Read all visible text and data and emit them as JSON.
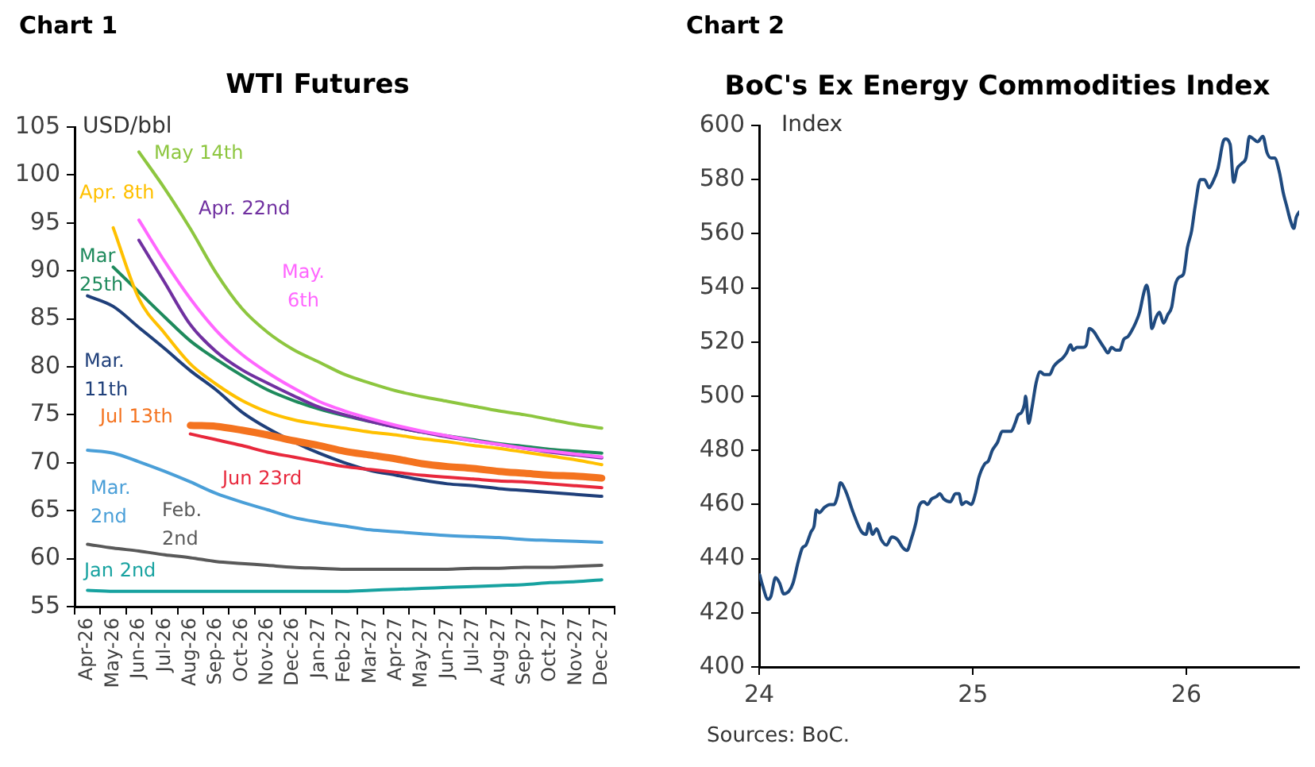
{
  "chart_data": [
    {
      "type": "line",
      "title": "WTI Futures",
      "ylabel": "USD/bbl",
      "annotations": [
        "Chart 1"
      ],
      "categories": [
        "Apr-26",
        "May-26",
        "Jun-26",
        "Jul-26",
        "Aug-26",
        "Sep-26",
        "Oct-26",
        "Nov-26",
        "Dec-26",
        "Jan-27",
        "Feb-27",
        "Mar-27",
        "Apr-27",
        "May-27",
        "Jun-27",
        "Jul-27",
        "Aug-27",
        "Sep-27",
        "Oct-27",
        "Nov-27",
        "Dec-27"
      ],
      "series": [
        {
          "name": "Jan 2nd",
          "color": "#17a2a0",
          "values": [
            56.7,
            56.6,
            56.6,
            56.6,
            56.6,
            56.6,
            56.6,
            56.6,
            56.6,
            56.6,
            56.6,
            56.7,
            56.8,
            56.9,
            57.0,
            57.1,
            57.2,
            57.3,
            57.5,
            57.6,
            57.8
          ]
        },
        {
          "name": "Feb. 2nd",
          "color": "#595959",
          "values": [
            61.5,
            61.1,
            60.8,
            60.4,
            60.1,
            59.7,
            59.5,
            59.3,
            59.1,
            59.0,
            58.9,
            58.9,
            58.9,
            58.9,
            58.9,
            59.0,
            59.0,
            59.1,
            59.1,
            59.2,
            59.3
          ]
        },
        {
          "name": "Mar. 2nd",
          "color": "#4a9fd8",
          "values": [
            71.3,
            71.0,
            70.1,
            69.1,
            68.0,
            66.8,
            65.9,
            65.1,
            64.3,
            63.8,
            63.4,
            63.0,
            62.8,
            62.6,
            62.4,
            62.3,
            62.2,
            62.0,
            61.9,
            61.8,
            61.7
          ]
        },
        {
          "name": "Mar. 11th",
          "color": "#1f3f7a",
          "values": [
            87.4,
            86.3,
            84.1,
            81.9,
            79.6,
            77.6,
            75.3,
            73.6,
            72.2,
            71.0,
            70.0,
            69.2,
            68.7,
            68.2,
            67.8,
            67.6,
            67.3,
            67.1,
            66.9,
            66.7,
            66.5
          ]
        },
        {
          "name": "Mar 25th",
          "color": "#1e8a5c",
          "values": [
            null,
            90.4,
            87.8,
            85.2,
            82.7,
            80.8,
            79.1,
            77.6,
            76.5,
            75.6,
            74.9,
            74.3,
            73.7,
            73.2,
            72.8,
            72.4,
            72.0,
            71.7,
            71.4,
            71.2,
            71.0
          ]
        },
        {
          "name": "Apr. 8th",
          "color": "#ffc000",
          "values": [
            null,
            94.5,
            87.1,
            83.5,
            80.3,
            78.2,
            76.5,
            75.3,
            74.5,
            74.0,
            73.6,
            73.2,
            72.9,
            72.5,
            72.2,
            71.8,
            71.5,
            71.1,
            70.7,
            70.3,
            69.8
          ]
        },
        {
          "name": "Apr. 22nd",
          "color": "#7030a0",
          "values": [
            null,
            null,
            93.2,
            88.8,
            84.4,
            81.6,
            79.7,
            78.3,
            77.0,
            75.8,
            75.0,
            74.3,
            73.7,
            73.2,
            72.7,
            72.3,
            71.9,
            71.5,
            71.1,
            70.8,
            70.5
          ]
        },
        {
          "name": "May. 6th",
          "color": "#ff66ff",
          "values": [
            null,
            null,
            95.3,
            91.0,
            87.1,
            83.8,
            81.3,
            79.4,
            77.8,
            76.4,
            75.4,
            74.6,
            73.9,
            73.3,
            72.8,
            72.3,
            71.9,
            71.5,
            71.2,
            70.9,
            70.6
          ]
        },
        {
          "name": "May 14th",
          "color": "#8dc63f",
          "values": [
            null,
            null,
            102.4,
            98.6,
            94.4,
            89.8,
            86.1,
            83.6,
            81.8,
            80.5,
            79.2,
            78.3,
            77.5,
            76.9,
            76.4,
            75.9,
            75.4,
            75.0,
            74.5,
            74.0,
            73.6
          ]
        },
        {
          "name": "Jun 23rd",
          "color": "#e8283c",
          "values": [
            null,
            null,
            null,
            null,
            73.0,
            72.4,
            71.8,
            71.1,
            70.6,
            70.1,
            69.6,
            69.3,
            69.0,
            68.7,
            68.5,
            68.3,
            68.1,
            68.0,
            67.8,
            67.6,
            67.4
          ]
        },
        {
          "name": "Jul 13th",
          "color": "#f4731f",
          "values": [
            null,
            null,
            null,
            null,
            73.9,
            73.8,
            73.4,
            72.9,
            72.3,
            71.8,
            71.2,
            70.8,
            70.4,
            69.9,
            69.6,
            69.4,
            69.1,
            68.9,
            68.7,
            68.6,
            68.4
          ]
        }
      ],
      "ylim": [
        55,
        105
      ],
      "yticks": [
        55,
        60,
        65,
        70,
        75,
        80,
        85,
        90,
        95,
        100,
        105
      ],
      "grid": false,
      "legend": false,
      "marker": "none"
    },
    {
      "type": "line",
      "title": "BoC's Ex Energy Commodities Index",
      "ylabel": "Index",
      "annotations": [
        "Chart 2",
        "Sources: BoC."
      ],
      "x": [
        "2024-01-02",
        "2024-01-07",
        "2024-01-16",
        "2024-01-21",
        "2024-01-29",
        "2024-02-05",
        "2024-02-12",
        "2024-02-21",
        "2024-02-28",
        "2024-03-08",
        "2024-03-15",
        "2024-03-21",
        "2024-03-30",
        "2024-04-04",
        "2024-04-08",
        "2024-04-13",
        "2024-04-22",
        "2024-05-01",
        "2024-05-08",
        "2024-05-14",
        "2024-05-19",
        "2024-05-28",
        "2024-06-10",
        "2024-06-24",
        "2024-07-02",
        "2024-07-07",
        "2024-07-13",
        "2024-07-20",
        "2024-07-28",
        "2024-08-06",
        "2024-08-15",
        "2024-08-25",
        "2024-09-03",
        "2024-09-10",
        "2024-09-17",
        "2024-09-26",
        "2024-09-30",
        "2024-10-09",
        "2024-10-15",
        "2024-10-22",
        "2024-10-31",
        "2024-11-05",
        "2024-11-12",
        "2024-11-23",
        "2024-12-02",
        "2024-12-08",
        "2024-12-13",
        "2024-12-20",
        "2024-12-29",
        "2025-01-05",
        "2025-01-11",
        "2025-01-21",
        "2025-01-27",
        "2025-02-03",
        "2025-02-12",
        "2025-02-20",
        "2025-03-01",
        "2025-03-07",
        "2025-03-14",
        "2025-03-19",
        "2025-03-25",
        "2025-03-30",
        "2025-04-01",
        "2025-04-06",
        "2025-04-12",
        "2025-04-19",
        "2025-04-26",
        "2025-05-03",
        "2025-05-12",
        "2025-05-19",
        "2025-05-28",
        "2025-06-03",
        "2025-06-10",
        "2025-06-17",
        "2025-06-21",
        "2025-06-28",
        "2025-07-08",
        "2025-07-14",
        "2025-07-19",
        "2025-07-26",
        "2025-08-04",
        "2025-08-13",
        "2025-08-20",
        "2025-08-26",
        "2025-09-03",
        "2025-09-09",
        "2025-09-16",
        "2025-09-23",
        "2025-09-29",
        "2025-10-06",
        "2025-10-13",
        "2025-10-20",
        "2025-10-25",
        "2025-10-29",
        "2025-11-03",
        "2025-11-10",
        "2025-11-16",
        "2025-11-23",
        "2025-11-30",
        "2025-12-07",
        "2025-12-13",
        "2025-12-20",
        "2025-12-27",
        "2026-01-03",
        "2026-01-10",
        "2026-01-16",
        "2026-01-25",
        "2026-02-01",
        "2026-02-09",
        "2026-02-15",
        "2026-02-24",
        "2026-03-05",
        "2026-03-09",
        "2026-03-17",
        "2026-03-23",
        "2026-03-29",
        "2026-04-06",
        "2026-04-13",
        "2026-04-19",
        "2026-04-26",
        "2026-05-03",
        "2026-05-12",
        "2026-05-19",
        "2026-05-26",
        "2026-06-01",
        "2026-06-09",
        "2026-06-16",
        "2026-06-22",
        "2026-06-28",
        "2026-07-04",
        "2026-07-08",
        "2026-07-13"
      ],
      "values": [
        434,
        430,
        425,
        426,
        433,
        431,
        427,
        428,
        431,
        439,
        444,
        445,
        450,
        452,
        458,
        457,
        459,
        460,
        460,
        463,
        468,
        465,
        457,
        450,
        449,
        453,
        449,
        451,
        447,
        445,
        448,
        447,
        444,
        443,
        447,
        454,
        459,
        461,
        460,
        462,
        463,
        464,
        462,
        461,
        464,
        464,
        460,
        461,
        460,
        464,
        470,
        475,
        476,
        480,
        483,
        487,
        487,
        487,
        490,
        493,
        494,
        497,
        500,
        490,
        496,
        505,
        509,
        508,
        508,
        511,
        513,
        514,
        516,
        519,
        517,
        518,
        518,
        519,
        525,
        524,
        521,
        518,
        516,
        518,
        517,
        517,
        521,
        522,
        524,
        527,
        531,
        538,
        541,
        537,
        525,
        529,
        531,
        527,
        530,
        533,
        541,
        544,
        545,
        555,
        561,
        570,
        580,
        580,
        577,
        579,
        584,
        594,
        595,
        593,
        579,
        584,
        586,
        588,
        596,
        595,
        594,
        596,
        590,
        588,
        588,
        583,
        575,
        570,
        565,
        562,
        566,
        568
      ],
      "color": "#1f4a7f",
      "xlim": [
        "2024-01-01",
        "2026-07-13"
      ],
      "xticks": [
        {
          "value": "2024",
          "label": "24"
        },
        {
          "value": "2025",
          "label": "25"
        },
        {
          "value": "2026",
          "label": "26"
        }
      ],
      "ylim": [
        400,
        600
      ],
      "yticks": [
        400,
        420,
        440,
        460,
        480,
        500,
        520,
        540,
        560,
        580,
        600
      ],
      "grid": false,
      "legend": false,
      "marker": "none"
    }
  ]
}
